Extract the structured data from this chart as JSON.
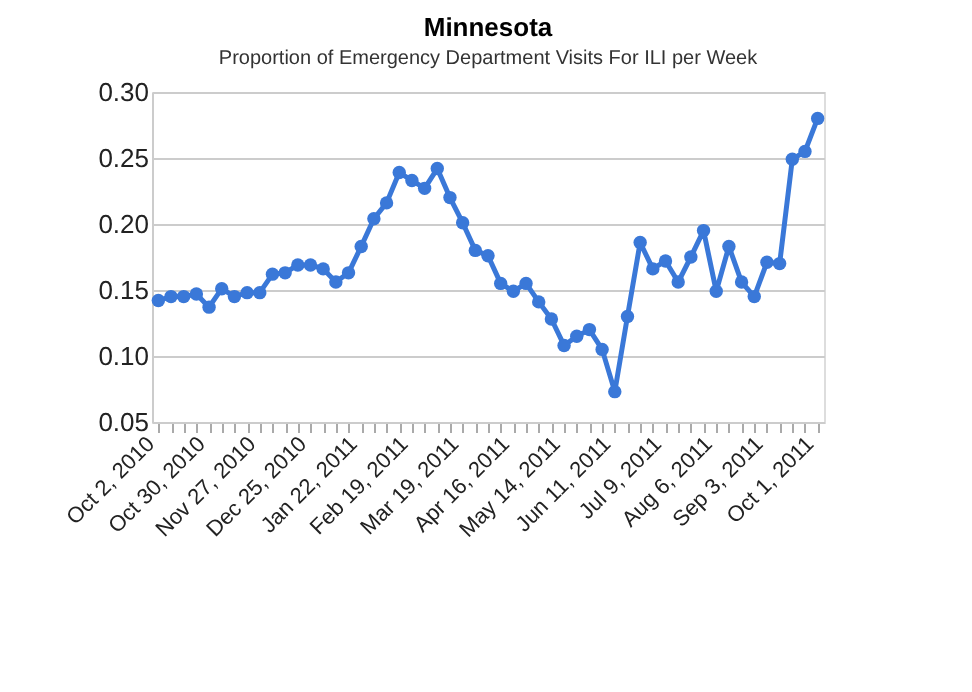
{
  "chart_data": {
    "type": "line",
    "title": "Minnesota",
    "subtitle": "Proportion of Emergency Department Visits For ILI per Week",
    "categories": [
      "Oct 2, 2010",
      null,
      null,
      null,
      "Oct 30, 2010",
      null,
      null,
      null,
      "Nov 27, 2010",
      null,
      null,
      null,
      "Dec 25, 2010",
      null,
      null,
      null,
      "Jan 22, 2011",
      null,
      null,
      null,
      "Feb 19, 2011",
      null,
      null,
      null,
      "Mar 19, 2011",
      null,
      null,
      null,
      "Apr 16, 2011",
      null,
      null,
      null,
      "May 14, 2011",
      null,
      null,
      null,
      "Jun 11, 2011",
      null,
      null,
      null,
      "Jul 9, 2011",
      null,
      null,
      null,
      "Aug 6, 2011",
      null,
      null,
      null,
      "Sep 3, 2011",
      null,
      null,
      null,
      "Oct 1, 2011"
    ],
    "series": [
      {
        "color": "#3a78d8",
        "values": [
          0.142,
          0.145,
          0.145,
          0.147,
          0.137,
          0.151,
          0.145,
          0.148,
          0.148,
          0.162,
          0.163,
          0.169,
          0.169,
          0.166,
          0.156,
          0.163,
          0.183,
          0.204,
          0.216,
          0.239,
          0.233,
          0.227,
          0.242,
          0.22,
          0.201,
          0.18,
          0.176,
          0.155,
          0.149,
          0.155,
          0.141,
          0.128,
          0.108,
          0.115,
          0.12,
          0.105,
          0.073,
          0.13,
          0.186,
          0.166,
          0.172,
          0.156,
          0.175,
          0.195,
          0.149,
          0.183,
          0.156,
          0.145,
          0.171,
          0.17,
          0.249,
          0.255,
          0.28
        ]
      }
    ],
    "ylim": [
      0.05,
      0.3
    ],
    "yticks": [
      0.05,
      {
        "value": 0.1,
        "label": "0.10"
      },
      0.15,
      {
        "value": 0.2,
        "label": "0.20"
      },
      0.25,
      {
        "value": 0.3,
        "label": "0.30"
      }
    ],
    "grid": "y",
    "marker": "circle",
    "line_style": "solid"
  }
}
